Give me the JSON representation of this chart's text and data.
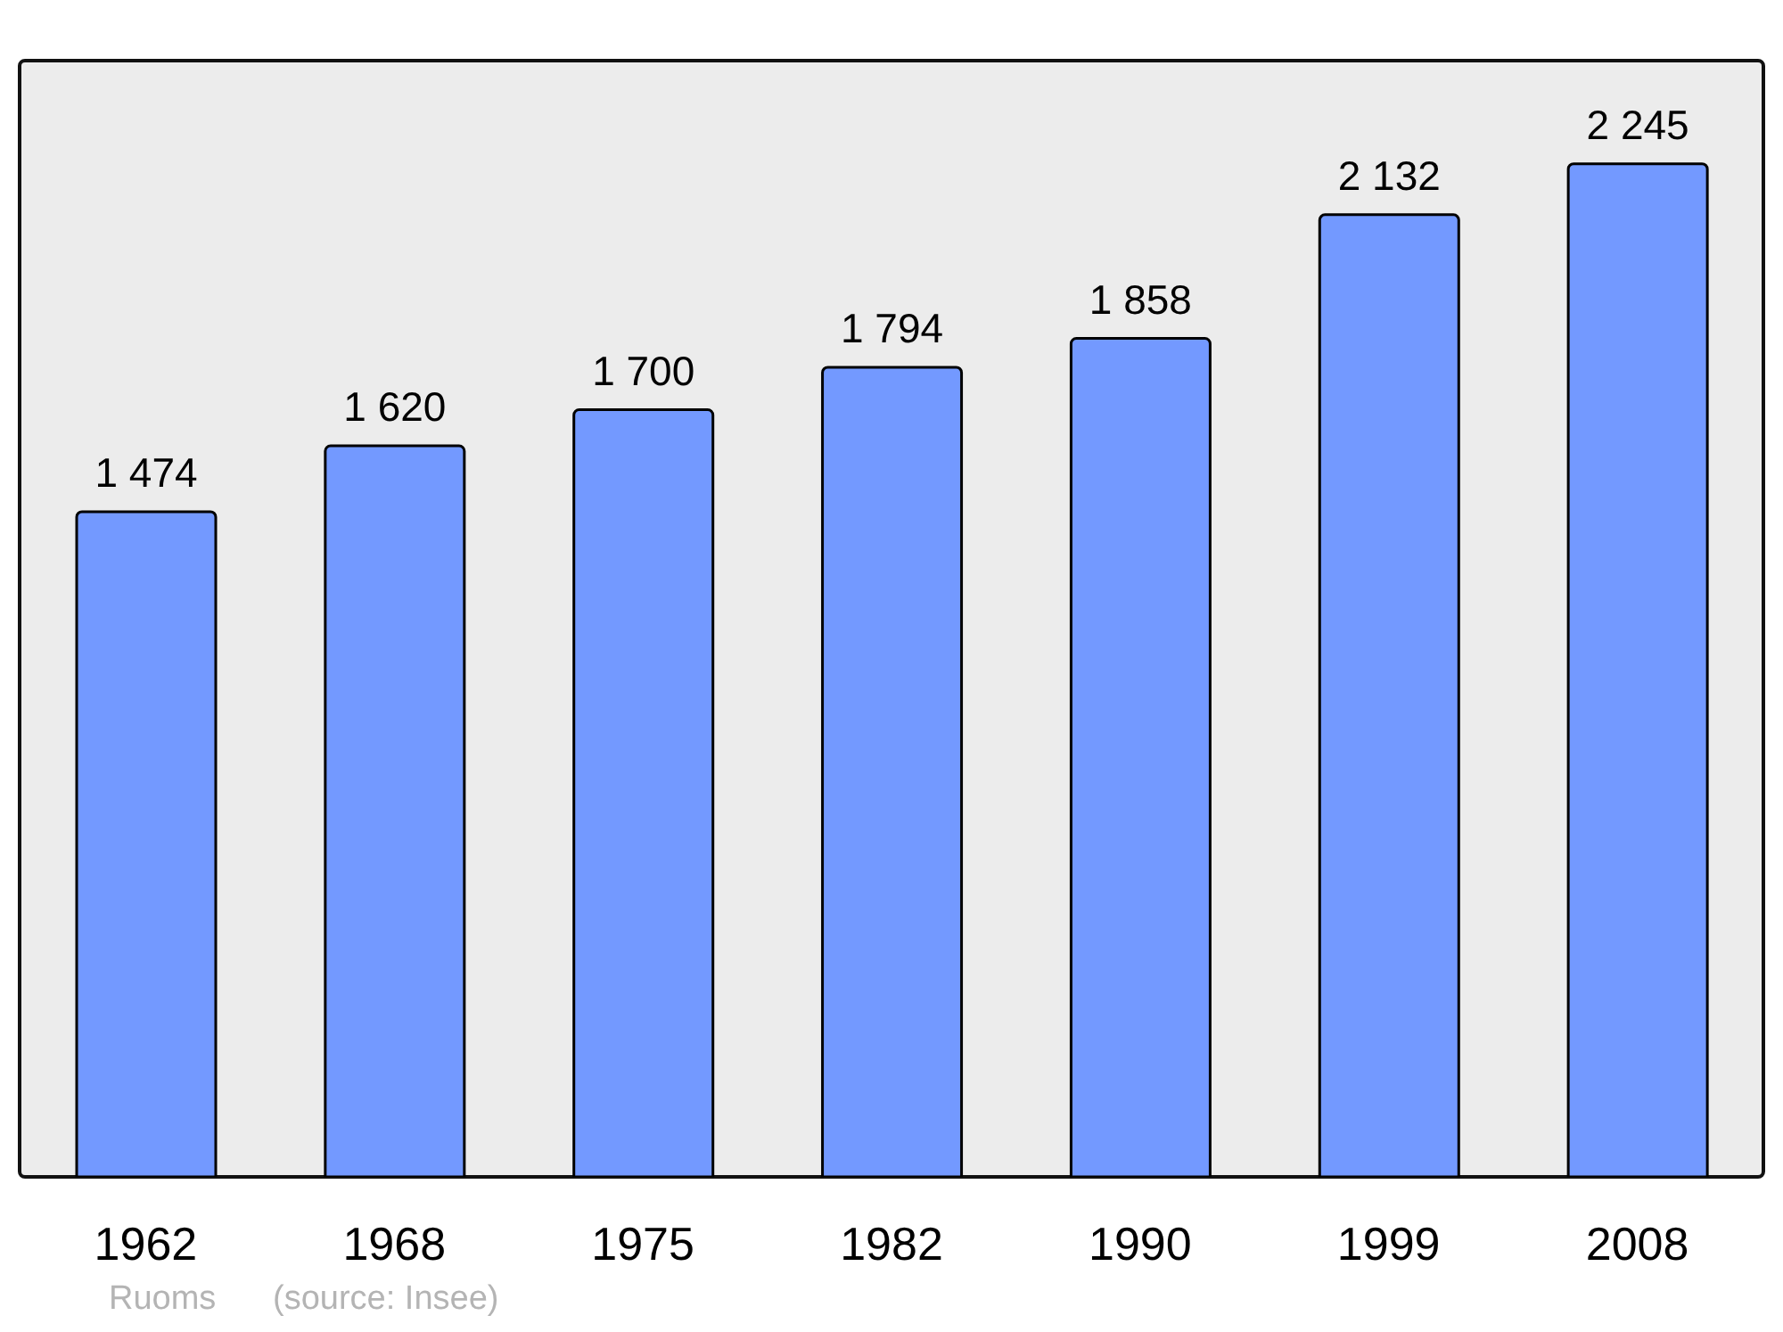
{
  "chart_data": {
    "type": "bar",
    "categories": [
      "1962",
      "1968",
      "1975",
      "1982",
      "1990",
      "1999",
      "2008"
    ],
    "values": [
      1474,
      1620,
      1700,
      1794,
      1858,
      2132,
      2245
    ],
    "value_labels": [
      "1 474",
      "1 620",
      "1 700",
      "1 794",
      "1 858",
      "2 132",
      "2 245"
    ],
    "color": "#7399ff",
    "tick_labels": "x",
    "annotations": [
      "Ruoms",
      "(source: Insee)"
    ]
  }
}
